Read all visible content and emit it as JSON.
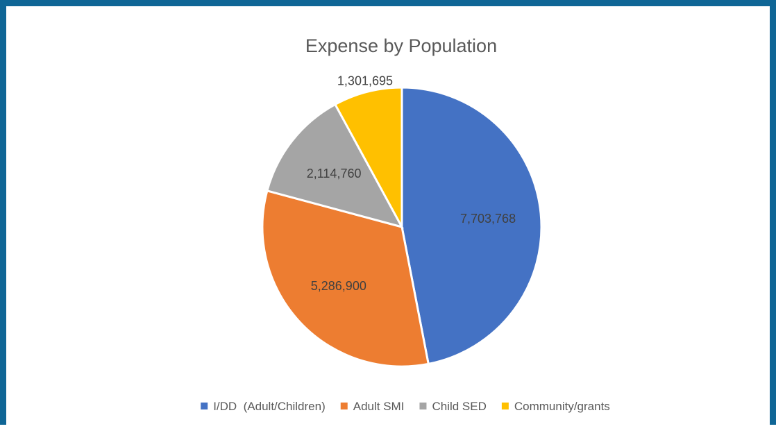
{
  "chart_data": {
    "type": "pie",
    "title": "Expense by Population",
    "categories": [
      "I/DD  (Adult/Children)",
      "Adult SMI",
      "Child SED",
      "Community/grants"
    ],
    "values": [
      7703768,
      5286900,
      2114760,
      1301695
    ],
    "labels": [
      "7,703,768",
      "5,286,900",
      "2,114,760",
      "1,301,695"
    ],
    "colors": [
      "#4472c4",
      "#ed7d31",
      "#a5a5a5",
      "#ffc000"
    ],
    "legend_position": "bottom",
    "start_angle_deg": 0,
    "direction": "clockwise"
  },
  "colors": {
    "frame": "#0f6696",
    "slice_border": "#ffffff"
  }
}
